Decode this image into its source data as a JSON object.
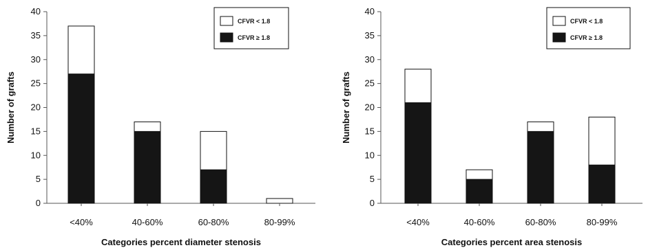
{
  "colors": {
    "filled": "#151515",
    "open": "#ffffff",
    "stroke": "#111111",
    "axis": "#555555"
  },
  "chart_data": [
    {
      "type": "bar",
      "stacked": true,
      "categories": [
        "<40%",
        "40-60%",
        "60-80%",
        "80-99%"
      ],
      "series": [
        {
          "name": "CFVR ≥ 1.8",
          "fill": "filled",
          "values": [
            27,
            15,
            7,
            0
          ]
        },
        {
          "name": "CFVR < 1.8",
          "fill": "open",
          "values": [
            10,
            2,
            8,
            1
          ]
        }
      ],
      "xlabel": "Categories percent diameter stenosis",
      "ylabel": "Number of grafts",
      "ylim": [
        0,
        40
      ],
      "yticks": [
        0,
        5,
        10,
        15,
        20,
        25,
        30,
        35,
        40
      ],
      "grid": false,
      "legend_position": "top-right"
    },
    {
      "type": "bar",
      "stacked": true,
      "categories": [
        "<40%",
        "40-60%",
        "60-80%",
        "80-99%"
      ],
      "series": [
        {
          "name": "CFVR ≥ 1.8",
          "fill": "filled",
          "values": [
            21,
            5,
            15,
            8
          ]
        },
        {
          "name": "CFVR < 1.8",
          "fill": "open",
          "values": [
            7,
            2,
            2,
            10
          ]
        }
      ],
      "xlabel": "Categories percent area stenosis",
      "ylabel": "Number of grafts",
      "ylim": [
        0,
        40
      ],
      "yticks": [
        0,
        5,
        10,
        15,
        20,
        25,
        30,
        35,
        40
      ],
      "grid": false,
      "legend_position": "top-right"
    }
  ]
}
